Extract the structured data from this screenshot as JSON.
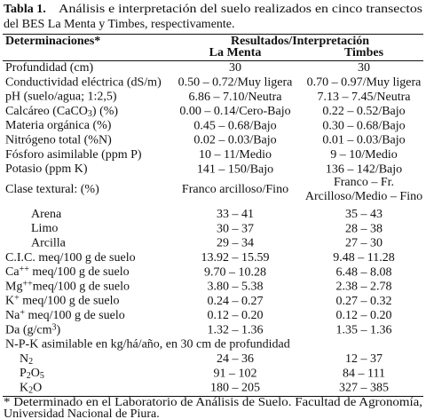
{
  "caption": {
    "label": "Tabla 1.",
    "line1": "Análisis e interpretación del suelo realizados en cinco transectos",
    "line2": "del BES La Menta y Timbes, respectivamente."
  },
  "table": {
    "header": {
      "determinations": "Determinaciones*",
      "results": "Resultados/Interpretación",
      "col1": "La Menta",
      "col2": "Timbes"
    },
    "rows": [
      {
        "label": [
          {
            "t": "Profundidad (cm)"
          }
        ],
        "la_menta": "30",
        "timbes": "30"
      },
      {
        "label": [
          {
            "t": "Conductividad eléctrica (dS/m)"
          }
        ],
        "la_menta": "0.50 – 0.72/Muy ligera",
        "timbes": "0.70 – 0.97/Muy ligera"
      },
      {
        "label": [
          {
            "t": "pH (suelo/agua; 1:2,5)"
          }
        ],
        "la_menta": "6.86 – 7.10/Neutra",
        "timbes": "7.13 – 7.45/Neutra"
      },
      {
        "label": [
          {
            "t": "Calcáreo (CaCO"
          },
          {
            "t": "3",
            "pos": "sub"
          },
          {
            "t": ") (%)"
          }
        ],
        "la_menta": "0.00 – 0.14/Cero-Bajo",
        "timbes": "0.22 – 0.52/Bajo"
      },
      {
        "label": [
          {
            "t": "Materia orgánica (%)"
          }
        ],
        "la_menta": "0.45 – 0.68/Bajo",
        "timbes": "0.30 – 0.68/Bajo"
      },
      {
        "label": [
          {
            "t": "Nitrógeno total (%N)"
          }
        ],
        "la_menta": "0.02 – 0.03/Bajo",
        "timbes": "0.01 – 0.03/Bajo"
      },
      {
        "label": [
          {
            "t": "Fósforo asimilable (ppm P)"
          }
        ],
        "la_menta": "10 – 11/Medio",
        "timbes": "9 – 10/Medio"
      },
      {
        "label": [
          {
            "t": "Potasio (ppm K)"
          }
        ],
        "la_menta": "141 – 150/Bajo",
        "timbes": "136 – 142/Bajo"
      },
      {
        "label": [
          {
            "t": "Clase textural: (%)"
          }
        ],
        "la_menta": "Franco arcilloso/Fino",
        "timbes": [
          "Franco – Fr.",
          "Arcilloso/Medio – Fino"
        ],
        "subrows": [
          {
            "label": [
              {
                "t": "Arena"
              }
            ],
            "la_menta": "33 – 41",
            "timbes": "35 – 43"
          },
          {
            "label": [
              {
                "t": "Limo"
              }
            ],
            "la_menta": "30 – 37",
            "timbes": "28 – 38"
          },
          {
            "label": [
              {
                "t": "Arcilla"
              }
            ],
            "la_menta": "29 – 34",
            "timbes": "27 – 30"
          }
        ]
      },
      {
        "label": [
          {
            "t": "C.I.C. meq/100 g de suelo"
          }
        ],
        "la_menta": "13.92 – 15.59",
        "timbes": "9.48 – 11.28"
      },
      {
        "label": [
          {
            "t": "Ca"
          },
          {
            "t": "++",
            "pos": "sup"
          },
          {
            "t": " meq/100 g de suelo"
          }
        ],
        "la_menta": "9.70 – 10.28",
        "timbes": "6.48 – 8.08"
      },
      {
        "label": [
          {
            "t": "Mg"
          },
          {
            "t": "++",
            "pos": "sup"
          },
          {
            "t": "meq/100 g de suelo"
          }
        ],
        "la_menta": "3.80 – 5.38",
        "timbes": "2.38 – 2.78"
      },
      {
        "label": [
          {
            "t": "K"
          },
          {
            "t": "+",
            "pos": "sup"
          },
          {
            "t": "  meq/100 g de suelo"
          }
        ],
        "la_menta": "0.24 – 0.27",
        "timbes": "0.27 – 0.32"
      },
      {
        "label": [
          {
            "t": "Na"
          },
          {
            "t": "+",
            "pos": "sup"
          },
          {
            "t": "  meq/100 g de suelo"
          }
        ],
        "la_menta": "0.12 – 0.20",
        "timbes": "0.12 – 0.20"
      },
      {
        "label": [
          {
            "t": "Da (g/cm"
          },
          {
            "t": "3",
            "pos": "sup"
          },
          {
            "t": ")"
          }
        ],
        "la_menta": "1.32 – 1.36",
        "timbes": "1.35 – 1.36"
      },
      {
        "label": [
          {
            "t": "N-P-K asimilable en kg/há/año, en 30 cm de profundidad"
          }
        ],
        "subrows": [
          {
            "label": [
              {
                "t": "N"
              },
              {
                "t": "2",
                "pos": "sub"
              }
            ],
            "la_menta": "24 – 36",
            "timbes": "12 – 37"
          },
          {
            "label": [
              {
                "t": "P"
              },
              {
                "t": "2",
                "pos": "sub"
              },
              {
                "t": "O"
              },
              {
                "t": "5",
                "pos": "sub"
              }
            ],
            "la_menta": "91 – 102",
            "timbes": "84 – 111"
          },
          {
            "label": [
              {
                "t": "K"
              },
              {
                "t": "2",
                "pos": "sub"
              },
              {
                "t": "O"
              }
            ],
            "la_menta": "180 – 205",
            "timbes": "327 – 385"
          }
        ]
      }
    ]
  },
  "footnote": {
    "line1": "* Determinado en el Laboratorio de Análisis de Suelo. Facultad de Agronomía,",
    "line2": "Universidad Nacional de Piura."
  }
}
